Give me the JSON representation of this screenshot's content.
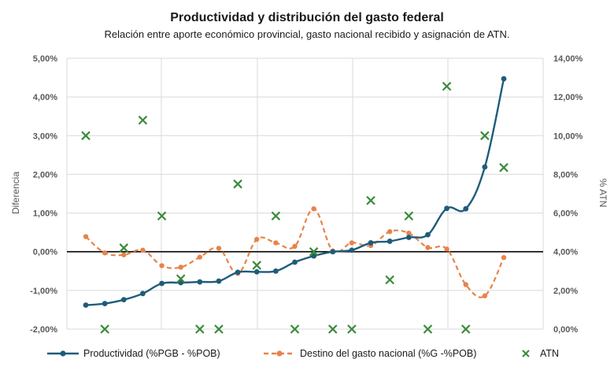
{
  "chart_data": {
    "type": "line",
    "title": "Productividad y distribución del gasto federal",
    "subtitle": "Relación entre aporte económico provincial, gasto nacional recibido y asignación de ATN.",
    "ylabel": "Diferencia",
    "y2label": "% ATN",
    "ylim": [
      -2,
      5
    ],
    "y2lim": [
      0,
      14
    ],
    "yticks": [
      "-2,00%",
      "-1,00%",
      "0,00%",
      "1,00%",
      "2,00%",
      "3,00%",
      "4,00%",
      "5,00%"
    ],
    "y2ticks": [
      "0,00%",
      "2,00%",
      "4,00%",
      "6,00%",
      "8,00%",
      "10,00%",
      "12,00%",
      "14,00%"
    ],
    "grid": true,
    "legend_position": "bottom",
    "series": [
      {
        "name": "Productividad (%PGB - %POB)",
        "axis": "left",
        "style": "solid-marker",
        "color": "#1f5c7a",
        "values": [
          -1.38,
          -1.34,
          -1.24,
          -1.08,
          -0.82,
          -0.8,
          -0.78,
          -0.76,
          -0.53,
          -0.52,
          -0.5,
          -0.27,
          -0.11,
          0.0,
          0.04,
          0.23,
          0.27,
          0.37,
          0.44,
          1.12,
          1.11,
          2.19,
          4.47
        ]
      },
      {
        "name": "Destino del gasto nacional (%G -%POB)",
        "axis": "left",
        "style": "dashed-marker",
        "color": "#e8834a",
        "values": [
          0.39,
          -0.03,
          -0.08,
          0.04,
          -0.36,
          -0.4,
          -0.14,
          0.09,
          -0.56,
          0.32,
          0.23,
          0.14,
          1.11,
          0.02,
          0.23,
          0.16,
          0.52,
          0.48,
          0.11,
          0.07,
          -0.85,
          -1.14,
          -0.15
        ]
      },
      {
        "name": "ATN",
        "axis": "right",
        "style": "scatter-x",
        "color": "#3a8a3a",
        "values": [
          10.0,
          0.0,
          4.2,
          10.8,
          5.85,
          2.6,
          0.0,
          0.0,
          7.5,
          3.3,
          5.85,
          0.0,
          4.0,
          0.0,
          0.0,
          6.65,
          2.55,
          5.85,
          0.0,
          12.55,
          0.0,
          10.0,
          8.35
        ]
      }
    ]
  },
  "colors": {
    "productividad": "#1f5c7a",
    "destino": "#e8834a",
    "atn": "#3a8a3a",
    "grid": "#d9d9d9",
    "zero_line": "#000000"
  }
}
